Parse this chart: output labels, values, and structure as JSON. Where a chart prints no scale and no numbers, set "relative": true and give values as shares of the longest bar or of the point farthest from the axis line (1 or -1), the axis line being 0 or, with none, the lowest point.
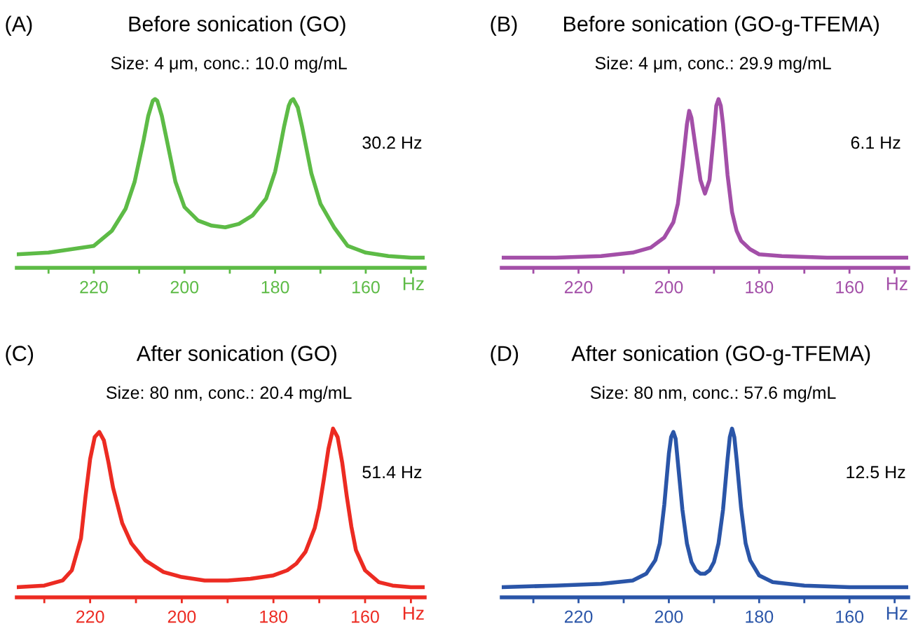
{
  "chart_data": [
    {
      "type": "line",
      "title": "Before sonication (GO)",
      "subtitle": "Size: 4 μm, conc.: 10.0 mg/mL",
      "xlabel": "Hz",
      "annotations": [
        "(A)",
        "30.2 Hz"
      ],
      "relative": true,
      "xlim": [
        237,
        147
      ],
      "xticks": [
        {
          "value": 230,
          "label": null
        },
        220,
        {
          "value": 210,
          "label": null
        },
        200,
        {
          "value": 190,
          "label": null
        },
        180,
        {
          "value": 170,
          "label": null
        },
        160,
        {
          "value": 150,
          "label": null
        }
      ],
      "x": [
        237,
        230,
        225,
        220,
        216,
        213,
        211,
        209,
        208,
        207,
        206.5,
        206,
        205,
        204,
        202,
        200,
        197,
        194,
        191,
        188,
        185,
        182,
        180,
        179,
        178,
        177,
        176.5,
        176,
        175,
        174,
        172,
        170,
        167,
        164,
        160,
        155,
        150,
        147
      ],
      "series": [
        {
          "color": "#5dbb46",
          "values": [
            0.08,
            0.09,
            0.11,
            0.13,
            0.22,
            0.35,
            0.51,
            0.76,
            0.9,
            0.99,
            1.0,
            0.99,
            0.9,
            0.77,
            0.51,
            0.36,
            0.28,
            0.25,
            0.24,
            0.26,
            0.31,
            0.41,
            0.57,
            0.7,
            0.84,
            0.96,
            0.99,
            1.0,
            0.95,
            0.83,
            0.56,
            0.38,
            0.24,
            0.13,
            0.09,
            0.07,
            0.06,
            0.06
          ]
        }
      ]
    },
    {
      "type": "line",
      "title": "Before sonication (GO-g-TFEMA)",
      "subtitle": "Size: 4 μm, conc.: 29.9 mg/mL",
      "xlabel": "Hz",
      "annotations": [
        "(B)",
        "6.1 Hz"
      ],
      "relative": true,
      "xlim": [
        237,
        147
      ],
      "xticks": [
        {
          "value": 230,
          "label": null
        },
        220,
        {
          "value": 210,
          "label": null
        },
        200,
        {
          "value": 190,
          "label": null
        },
        180,
        {
          "value": 170,
          "label": null
        },
        160,
        {
          "value": 150,
          "label": null
        }
      ],
      "x": [
        237,
        225,
        215,
        208,
        204,
        201,
        199,
        198,
        197,
        196,
        195.5,
        195,
        194,
        193,
        192,
        191,
        190,
        189.5,
        189,
        188.5,
        188,
        187,
        186,
        185,
        184,
        182,
        180,
        175,
        165,
        155,
        147
      ],
      "series": [
        {
          "color": "#a34fa8",
          "values": [
            0.06,
            0.06,
            0.07,
            0.09,
            0.12,
            0.18,
            0.27,
            0.38,
            0.6,
            0.85,
            0.93,
            0.89,
            0.7,
            0.52,
            0.44,
            0.52,
            0.8,
            0.96,
            1.0,
            0.96,
            0.85,
            0.55,
            0.33,
            0.22,
            0.16,
            0.11,
            0.08,
            0.07,
            0.06,
            0.06,
            0.06
          ]
        }
      ]
    },
    {
      "type": "line",
      "title": "After sonication (GO)",
      "subtitle": "Size: 80 nm, conc.: 20.4 mg/mL",
      "xlabel": "Hz",
      "annotations": [
        "(C)",
        "51.4 Hz"
      ],
      "relative": true,
      "xlim": [
        236,
        147
      ],
      "xticks": [
        {
          "value": 230,
          "label": null
        },
        220,
        {
          "value": 210,
          "label": null
        },
        200,
        {
          "value": 190,
          "label": null
        },
        180,
        {
          "value": 170,
          "label": null
        },
        160,
        {
          "value": 150,
          "label": null
        }
      ],
      "x": [
        236,
        230,
        226,
        224,
        222,
        221,
        220,
        219,
        218,
        217,
        216,
        215,
        213,
        211,
        208,
        204,
        200,
        195,
        190,
        185,
        180,
        177,
        175,
        173,
        171,
        170,
        169,
        168,
        167,
        166,
        165,
        164,
        163,
        162,
        160,
        157,
        154,
        150,
        147
      ],
      "series": [
        {
          "color": "#ec2b22",
          "values": [
            0.06,
            0.07,
            0.1,
            0.16,
            0.35,
            0.6,
            0.82,
            0.95,
            0.98,
            0.93,
            0.8,
            0.65,
            0.44,
            0.32,
            0.22,
            0.15,
            0.12,
            0.1,
            0.1,
            0.11,
            0.13,
            0.16,
            0.2,
            0.27,
            0.41,
            0.53,
            0.7,
            0.88,
            1.0,
            0.95,
            0.8,
            0.6,
            0.42,
            0.28,
            0.16,
            0.09,
            0.07,
            0.06,
            0.06
          ]
        }
      ]
    },
    {
      "type": "line",
      "title": "After sonication (GO-g-TFEMA)",
      "subtitle": "Size: 80 nm, conc.: 57.6 mg/mL",
      "xlabel": "Hz",
      "annotations": [
        "(D)",
        "12.5 Hz"
      ],
      "relative": true,
      "xlim": [
        237,
        147
      ],
      "xticks": [
        {
          "value": 230,
          "label": null
        },
        220,
        {
          "value": 210,
          "label": null
        },
        200,
        {
          "value": 190,
          "label": null
        },
        180,
        {
          "value": 170,
          "label": null
        },
        160,
        {
          "value": 150,
          "label": null
        }
      ],
      "x": [
        237,
        225,
        215,
        208,
        205,
        203,
        202,
        201,
        200,
        199.5,
        199,
        198.5,
        198,
        197,
        196,
        195,
        194,
        193,
        192,
        191,
        190,
        189,
        188,
        187,
        186.5,
        186,
        185.5,
        185,
        184,
        183,
        182,
        180,
        177,
        170,
        160,
        147
      ],
      "series": [
        {
          "color": "#2a55a8",
          "values": [
            0.06,
            0.07,
            0.08,
            0.1,
            0.14,
            0.22,
            0.32,
            0.55,
            0.85,
            0.95,
            0.98,
            0.94,
            0.8,
            0.52,
            0.32,
            0.21,
            0.16,
            0.14,
            0.14,
            0.16,
            0.21,
            0.32,
            0.52,
            0.82,
            0.95,
            1.0,
            0.95,
            0.82,
            0.53,
            0.32,
            0.22,
            0.13,
            0.09,
            0.07,
            0.06,
            0.06
          ]
        }
      ]
    }
  ]
}
